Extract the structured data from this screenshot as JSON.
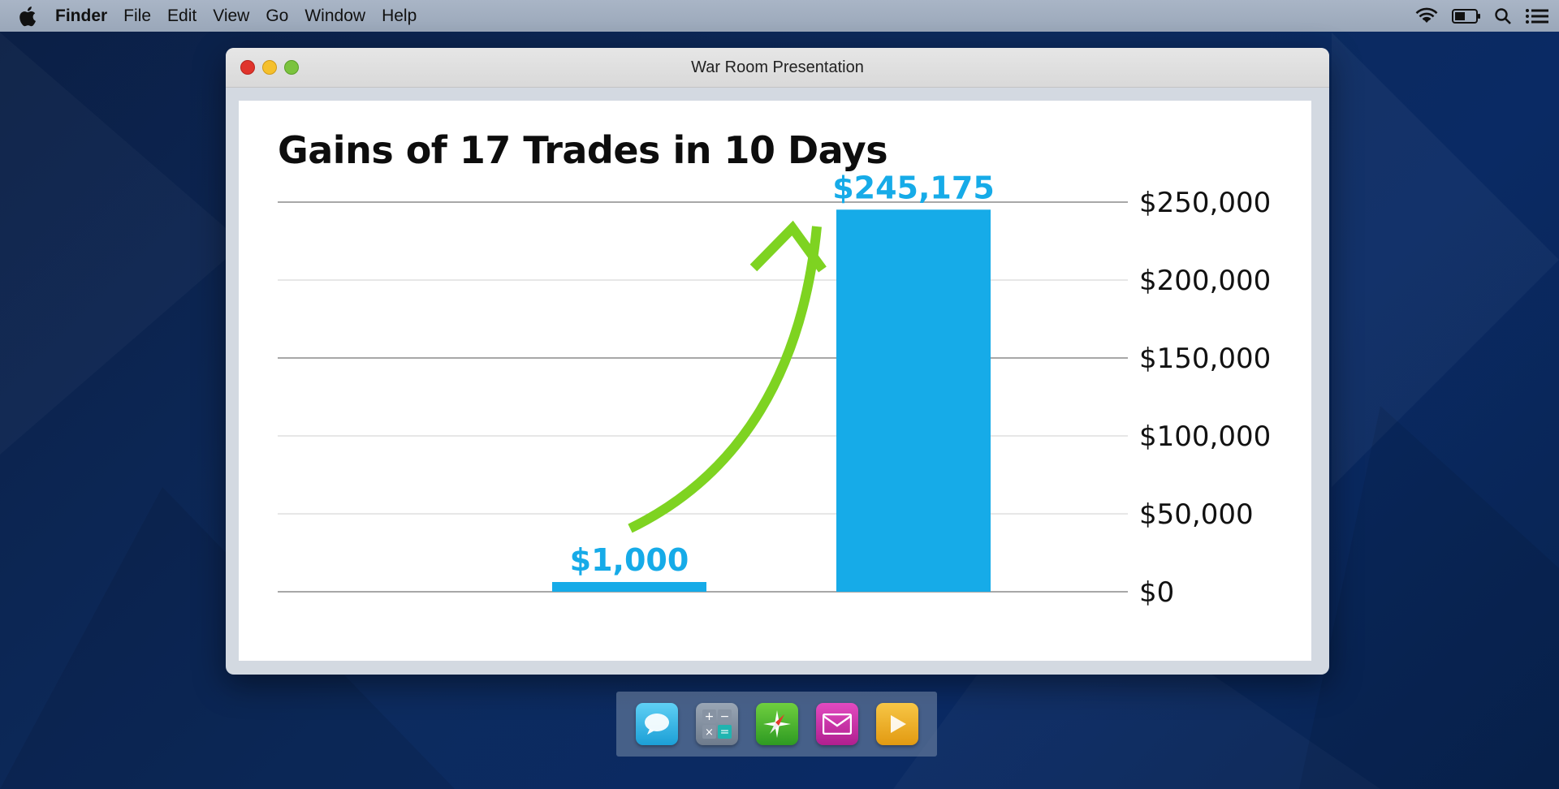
{
  "menubar": {
    "app_name": "Finder",
    "items": [
      "File",
      "Edit",
      "View",
      "Go",
      "Window",
      "Help"
    ],
    "status_icons": [
      "wifi-icon",
      "battery-icon",
      "search-icon",
      "list-icon"
    ]
  },
  "window": {
    "title": "War Room Presentation"
  },
  "slide": {
    "title": "Gains of 17 Trades in 10 Days"
  },
  "chart_data": {
    "type": "bar",
    "title": "Gains of 17 Trades in 10 Days",
    "categories": [
      "",
      ""
    ],
    "values": [
      1000,
      245175
    ],
    "data_labels": [
      "$1,000",
      "$245,175"
    ],
    "ylim": [
      0,
      250000
    ],
    "yticks": [
      0,
      50000,
      100000,
      150000,
      200000,
      250000
    ],
    "ytick_labels": [
      "$0",
      "$50,000",
      "$100,000",
      "$150,000",
      "$200,000",
      "$250,000"
    ],
    "yaxis_side": "right",
    "grid": true,
    "bar_color": "#16abe8",
    "annotation": "green upward arrow from first bar to second bar",
    "arrow_color": "#7ed321"
  },
  "dock": {
    "items": [
      "messages-icon",
      "calculator-icon",
      "compass-icon",
      "mail-icon",
      "play-icon"
    ]
  },
  "colors": {
    "accent": "#16abe8",
    "arrow": "#7ed321",
    "desktop": "#0d2b5e"
  }
}
